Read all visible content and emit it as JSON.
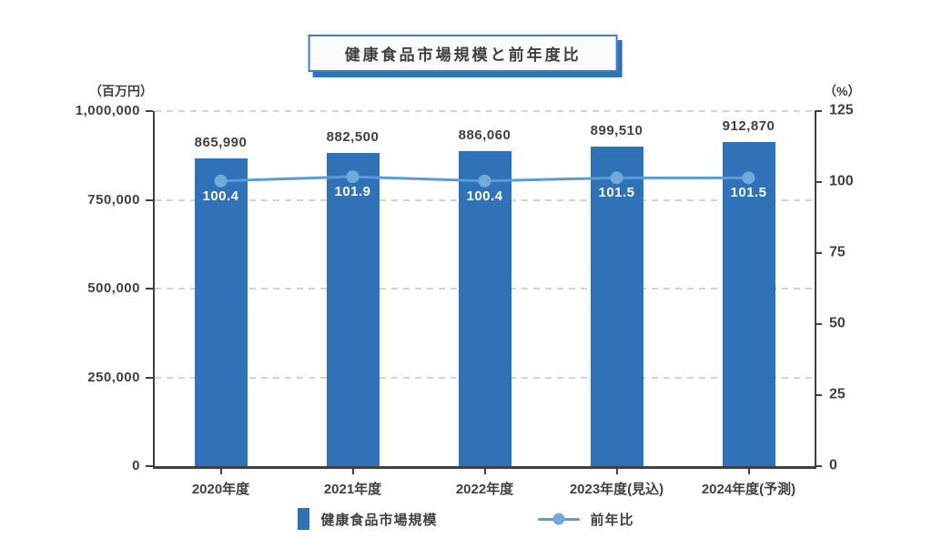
{
  "title": {
    "text": "健康食品市場規模と前年度比"
  },
  "colors": {
    "bar": "#2f72b7",
    "line": "#5b9bd5",
    "marker": "#70a9dc",
    "axis": "#3f3f3f",
    "grid": "#cdcdcd",
    "accent_border": "#3e7dc0",
    "shadow": "#2e73b8"
  },
  "legend": {
    "items": [
      {
        "label": "健康食品市場規模",
        "swatch": "bar"
      },
      {
        "label": "前年比",
        "swatch": "line"
      }
    ]
  },
  "chart_data": {
    "type": "bar",
    "title": "健康食品市場規模と前年度比",
    "categories": [
      "2020年度",
      "2021年度",
      "2022年度",
      "2023年度(見込)",
      "2024年度(予測)"
    ],
    "series": [
      {
        "name": "健康食品市場規模",
        "type": "bar",
        "axis": "left",
        "values": [
          865990,
          882500,
          886060,
          899510,
          912870
        ],
        "labels": [
          "865,990",
          "882,500",
          "886,060",
          "899,510",
          "912,870"
        ],
        "color": "#2f72b7"
      },
      {
        "name": "前年比",
        "type": "line",
        "axis": "right",
        "values": [
          100.4,
          101.9,
          100.4,
          101.5,
          101.5
        ],
        "labels": [
          "100.4",
          "101.9",
          "100.4",
          "101.5",
          "101.5"
        ],
        "color": "#5b9bd5",
        "marker_color": "#70a9dc"
      }
    ],
    "left_axis": {
      "unit": "（百万円）",
      "min": 0,
      "max": 1000000,
      "tick_values": [
        1000000,
        750000,
        500000,
        250000,
        0
      ],
      "tick_labels": [
        "1,000,000",
        "750,000",
        "500,000",
        "250,000",
        "0"
      ]
    },
    "right_axis": {
      "unit": "（%）",
      "min": 0,
      "max": 125,
      "tick_values": [
        125,
        100,
        75,
        50,
        25,
        0
      ],
      "tick_labels": [
        "125",
        "100",
        "75",
        "50",
        "25",
        "0"
      ]
    },
    "grid": true,
    "legend_position": "bottom"
  }
}
